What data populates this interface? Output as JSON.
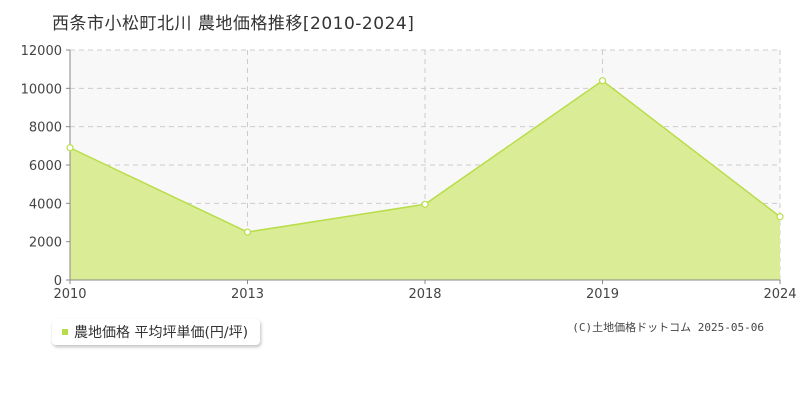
{
  "title": "西条市小松町北川 農地価格推移[2010-2024]",
  "colors": {
    "area_fill": "#dbec96",
    "line": "#b9dd4a",
    "marker_fill": "#ffffff",
    "grid": "#cccccc",
    "axis": "#888888",
    "plot_bg": "#f8f8f8"
  },
  "legend": {
    "label": "農地価格 平均坪単価(円/坪)",
    "swatch_color": "#b9dd4a"
  },
  "copyright": "(C)土地価格ドットコム 2025-05-06",
  "chart_data": {
    "type": "area",
    "categories": [
      "2010",
      "2013",
      "2018",
      "2019",
      "2024"
    ],
    "series": [
      {
        "values": [
          6900,
          2500,
          3950,
          10400,
          3300
        ]
      }
    ],
    "yticks": [
      "0",
      "2000",
      "4000",
      "6000",
      "8000",
      "10000",
      "12000"
    ],
    "ylim": [
      0,
      12000
    ],
    "grid": true,
    "legend_position": "bottom-left"
  }
}
